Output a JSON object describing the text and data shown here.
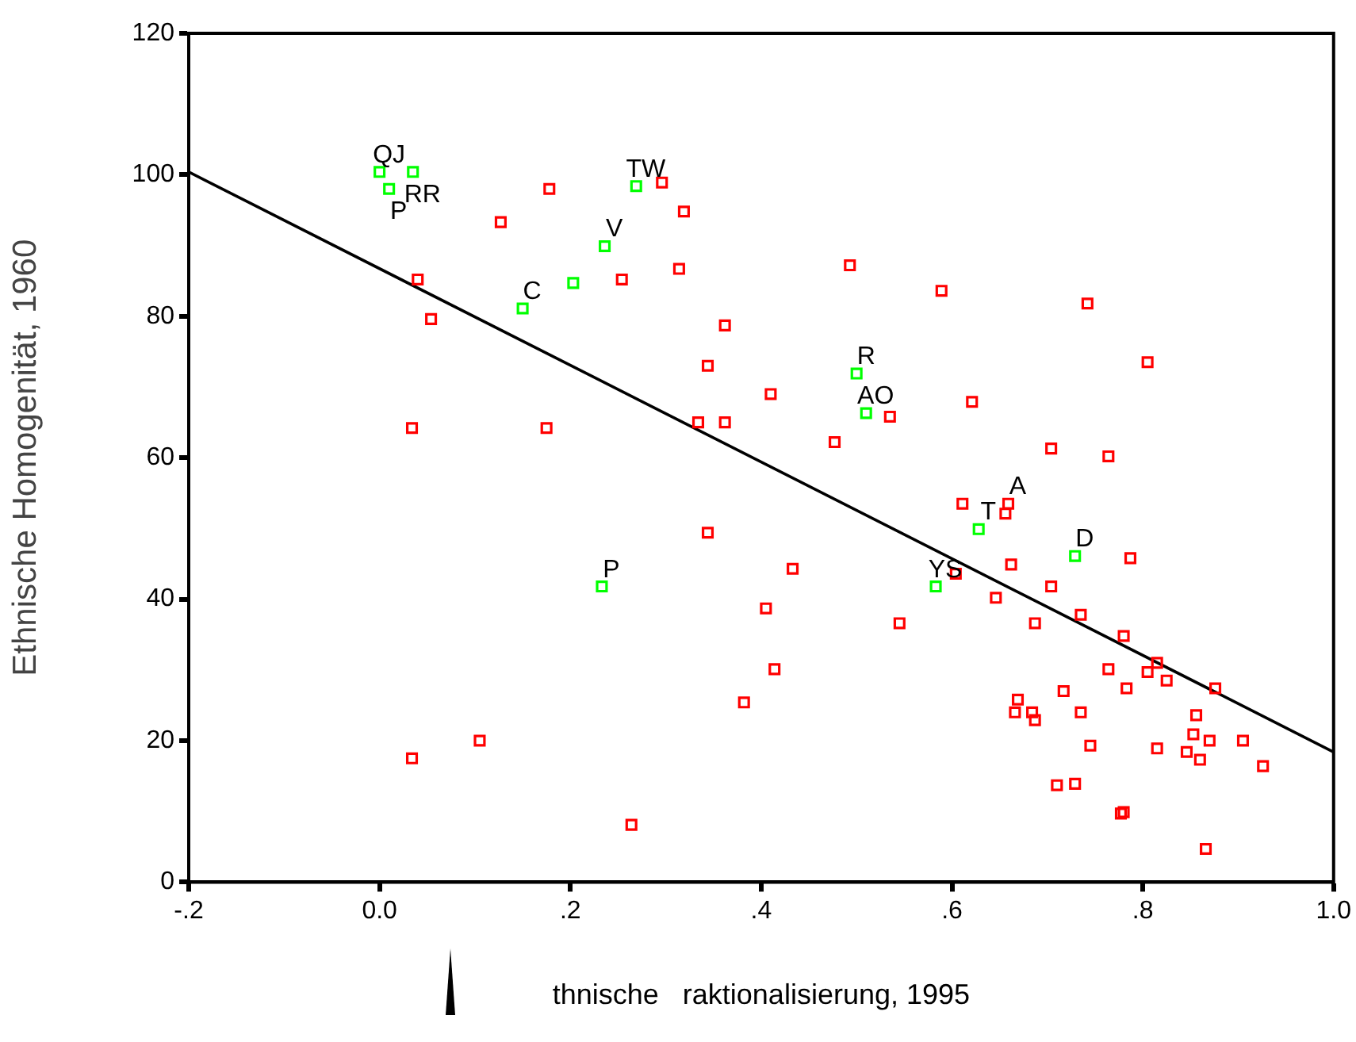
{
  "chart_data": {
    "type": "scatter",
    "xlabel": "thnische   raktionalisierung, 1995",
    "ylabel": "Ethnische Homogenität, 1960",
    "xlim": [
      -0.2,
      1.0
    ],
    "xticks": [
      {
        "value": -0.2,
        "label": "-.2"
      },
      {
        "value": 0,
        "label": "0.0"
      },
      {
        "value": 0.2,
        "label": ".2"
      },
      {
        "value": 0.4,
        "label": ".4"
      },
      {
        "value": 0.6,
        "label": ".6"
      },
      {
        "value": 0.8,
        "label": ".8"
      },
      {
        "value": 1.0,
        "label": "1.0"
      }
    ],
    "ylim": [
      0,
      120
    ],
    "yticks": [
      0,
      20,
      40,
      60,
      80,
      100,
      120
    ],
    "grid": false,
    "legend": false,
    "marker": "square",
    "series": [
      {
        "color": "#ff0000",
        "x": [
          0.178,
          0.127,
          0.296,
          0.319,
          0.254,
          0.314,
          0.04,
          0.054,
          0.362,
          0.344,
          0.334,
          0.362,
          0.034,
          0.175,
          0.493,
          0.589,
          0.742,
          0.805,
          0.41,
          0.535,
          0.621,
          0.477,
          0.704,
          0.764,
          0.611,
          0.659,
          0.656,
          0.787,
          0.662,
          0.604,
          0.433,
          0.704,
          0.405,
          0.646,
          0.545,
          0.687,
          0.735,
          0.78,
          0.344,
          0.382,
          0.034,
          0.105,
          0.264,
          0.414,
          0.815,
          0.805,
          0.825,
          0.764,
          0.876,
          0.783,
          0.717,
          0.669,
          0.666,
          0.684,
          0.687,
          0.735,
          0.856,
          0.853,
          0.87,
          0.905,
          0.745,
          0.815,
          0.846,
          0.86,
          0.926,
          0.71,
          0.729,
          0.777,
          0.78,
          0.866
        ],
        "values": [
          98.0,
          93.3,
          98.9,
          94.8,
          85.2,
          86.7,
          85.2,
          79.6,
          78.7,
          73.0,
          65.0,
          65.0,
          64.2,
          64.2,
          87.2,
          83.6,
          81.8,
          73.5,
          69.0,
          65.8,
          67.9,
          62.2,
          61.3,
          60.2,
          53.5,
          53.5,
          52.1,
          45.8,
          44.9,
          43.6,
          44.3,
          41.8,
          38.7,
          40.2,
          36.6,
          36.6,
          37.8,
          34.8,
          49.4,
          25.4,
          17.5,
          20.0,
          8.1,
          30.1,
          31.0,
          29.7,
          28.5,
          30.1,
          27.4,
          27.4,
          27.0,
          25.8,
          24.0,
          24.0,
          22.9,
          24.0,
          23.6,
          20.9,
          20.0,
          20.0,
          19.3,
          18.9,
          18.4,
          17.3,
          16.4,
          13.7,
          13.9,
          9.7,
          9.9,
          4.7
        ]
      },
      {
        "color": "#00ff00",
        "x": [
          0.0,
          0.01,
          0.035,
          0.269,
          0.236,
          0.15,
          0.203,
          0.233,
          0.5,
          0.51,
          0.628,
          0.583,
          0.729
        ],
        "values": [
          100.4,
          98.0,
          100.4,
          98.4,
          89.9,
          81.1,
          84.7,
          41.8,
          71.9,
          66.3,
          49.9,
          41.8,
          46.1
        ]
      },
      {
        "type": "line",
        "color": "#000000",
        "marker": "none",
        "line_style": "solid",
        "x": [
          -0.2,
          1.0
        ],
        "values": [
          100.4,
          18.4
        ]
      }
    ],
    "annotations": [
      {
        "text": "Q",
        "x": 0.0,
        "y": 100.4
      },
      {
        "text": "J",
        "x": 0.0,
        "y": 100.4
      },
      {
        "text": "R",
        "x": 0.035,
        "y": 100.4
      },
      {
        "text": "R",
        "x": 0.035,
        "y": 100.4
      },
      {
        "text": "P",
        "x": 0.01,
        "y": 98.0
      },
      {
        "text": "TW",
        "x": 0.269,
        "y": 98.4
      },
      {
        "text": "V",
        "x": 0.236,
        "y": 89.9
      },
      {
        "text": "C",
        "x": 0.15,
        "y": 81.1
      },
      {
        "text": "R",
        "x": 0.5,
        "y": 71.9
      },
      {
        "text": "AO",
        "x": 0.51,
        "y": 66.3
      },
      {
        "text": "T",
        "x": 0.628,
        "y": 49.9
      },
      {
        "text": "A",
        "x": 0.659,
        "y": 53.5
      },
      {
        "text": "D",
        "x": 0.729,
        "y": 46.1
      },
      {
        "text": "YS",
        "x": 0.583,
        "y": 41.8
      },
      {
        "text": "P",
        "x": 0.233,
        "y": 41.8
      }
    ]
  }
}
